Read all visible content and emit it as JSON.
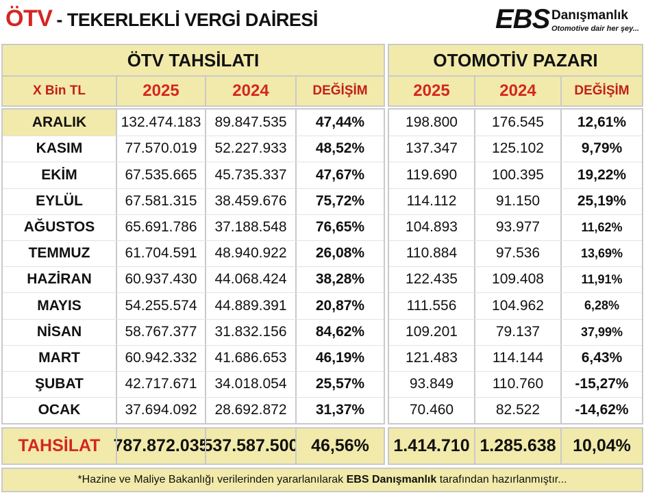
{
  "header": {
    "title_main": "ÖTV",
    "title_rest": "- TEKERLEKLİ VERGİ DAİRESİ",
    "logo_main": "EBS",
    "logo_brand": "Danışmanlık",
    "logo_slogan": "Otomotive dair her şey..."
  },
  "tax": {
    "group_title": "ÖTV TAHSİLATI",
    "unit_label": "X Bin TL",
    "col_2025": "2025",
    "col_2024": "2024",
    "col_change": "DEĞİŞİM"
  },
  "market": {
    "group_title": "OTOMOTİV PAZARI",
    "col_2025": "2025",
    "col_2024": "2024",
    "col_change": "DEĞİŞİM"
  },
  "rows": [
    {
      "month": "ARALIK",
      "tax_2025": "132.474.183",
      "tax_2024": "89.847.535",
      "tax_change": "47,44%",
      "mkt_2025": "198.800",
      "mkt_2024": "176.545",
      "mkt_change": "12,61%"
    },
    {
      "month": "KASIM",
      "tax_2025": "77.570.019",
      "tax_2024": "52.227.933",
      "tax_change": "48,52%",
      "mkt_2025": "137.347",
      "mkt_2024": "125.102",
      "mkt_change": "9,79%"
    },
    {
      "month": "EKİM",
      "tax_2025": "67.535.665",
      "tax_2024": "45.735.337",
      "tax_change": "47,67%",
      "mkt_2025": "119.690",
      "mkt_2024": "100.395",
      "mkt_change": "19,22%"
    },
    {
      "month": "EYLÜL",
      "tax_2025": "67.581.315",
      "tax_2024": "38.459.676",
      "tax_change": "75,72%",
      "mkt_2025": "114.112",
      "mkt_2024": "91.150",
      "mkt_change": "25,19%"
    },
    {
      "month": "AĞUSTOS",
      "tax_2025": "65.691.786",
      "tax_2024": "37.188.548",
      "tax_change": "76,65%",
      "mkt_2025": "104.893",
      "mkt_2024": "93.977",
      "mkt_change": "11,62%"
    },
    {
      "month": "TEMMUZ",
      "tax_2025": "61.704.591",
      "tax_2024": "48.940.922",
      "tax_change": "26,08%",
      "mkt_2025": "110.884",
      "mkt_2024": "97.536",
      "mkt_change": "13,69%"
    },
    {
      "month": "HAZİRAN",
      "tax_2025": "60.937.430",
      "tax_2024": "44.068.424",
      "tax_change": "38,28%",
      "mkt_2025": "122.435",
      "mkt_2024": "109.408",
      "mkt_change": "11,91%"
    },
    {
      "month": "MAYIS",
      "tax_2025": "54.255.574",
      "tax_2024": "44.889.391",
      "tax_change": "20,87%",
      "mkt_2025": "111.556",
      "mkt_2024": "104.962",
      "mkt_change": "6,28%"
    },
    {
      "month": "NİSAN",
      "tax_2025": "58.767.377",
      "tax_2024": "31.832.156",
      "tax_change": "84,62%",
      "mkt_2025": "109.201",
      "mkt_2024": "79.137",
      "mkt_change": "37,99%"
    },
    {
      "month": "MART",
      "tax_2025": "60.942.332",
      "tax_2024": "41.686.653",
      "tax_change": "46,19%",
      "mkt_2025": "121.483",
      "mkt_2024": "114.144",
      "mkt_change": "6,43%"
    },
    {
      "month": "ŞUBAT",
      "tax_2025": "42.717.671",
      "tax_2024": "34.018.054",
      "tax_change": "25,57%",
      "mkt_2025": "93.849",
      "mkt_2024": "110.760",
      "mkt_change": "-15,27%"
    },
    {
      "month": "OCAK",
      "tax_2025": "37.694.092",
      "tax_2024": "28.692.872",
      "tax_change": "31,37%",
      "mkt_2025": "70.460",
      "mkt_2024": "82.522",
      "mkt_change": "-14,62%"
    }
  ],
  "totals": {
    "label": "TAHSİLAT",
    "tax_2025": "787.872.035",
    "tax_2024": "537.587.500",
    "tax_change": "46,56%",
    "mkt_2025": "1.414.710",
    "mkt_2024": "1.285.638",
    "mkt_change": "10,04%"
  },
  "footer": {
    "prefix": "*Hazine ve Maliye Bakanlığı verilerinden yararlanılarak",
    "brand": "EBS Danışmanlık",
    "suffix": "tarafından hazırlanmıştır..."
  }
}
